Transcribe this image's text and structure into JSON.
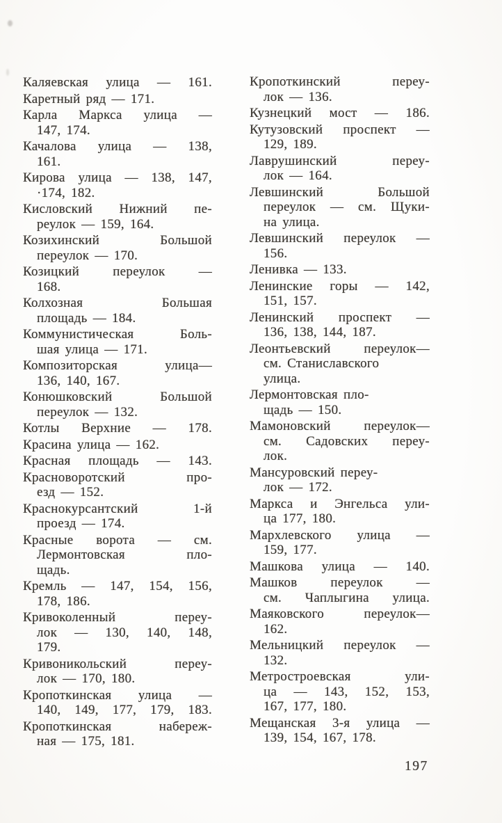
{
  "page": {
    "number": "197"
  },
  "columns": {
    "left": [
      {
        "lines": [
          {
            "text": "Каляевская улица — 161.",
            "indent": false,
            "justify": true
          }
        ]
      },
      {
        "lines": [
          {
            "text": "Каретный ряд — 171.",
            "indent": false,
            "justify": false
          }
        ]
      },
      {
        "lines": [
          {
            "text": "Карла Маркса улица —",
            "indent": false,
            "justify": true
          },
          {
            "text": "147, 174.",
            "indent": true,
            "justify": false
          }
        ]
      },
      {
        "lines": [
          {
            "text": "Качалова улица — 138,",
            "indent": false,
            "justify": true
          },
          {
            "text": "161.",
            "indent": true,
            "justify": false
          }
        ]
      },
      {
        "lines": [
          {
            "text": "Кирова улица — 138, 147,",
            "indent": false,
            "justify": true
          },
          {
            "text": "·174, 182.",
            "indent": true,
            "justify": false
          }
        ]
      },
      {
        "lines": [
          {
            "text": "Кисловский Нижний пе-",
            "indent": false,
            "justify": true
          },
          {
            "text": "реулок — 159, 164.",
            "indent": true,
            "justify": false
          }
        ]
      },
      {
        "lines": [
          {
            "text": "Козихинский Большой",
            "indent": false,
            "justify": true
          },
          {
            "text": "переулок — 170.",
            "indent": true,
            "justify": false
          }
        ]
      },
      {
        "lines": [
          {
            "text": "Козицкий переулок —",
            "indent": false,
            "justify": true
          },
          {
            "text": "168.",
            "indent": true,
            "justify": false
          }
        ]
      },
      {
        "lines": [
          {
            "text": "Колхозная Большая",
            "indent": false,
            "justify": true
          },
          {
            "text": "площадь — 184.",
            "indent": true,
            "justify": false
          }
        ]
      },
      {
        "lines": [
          {
            "text": "Коммунистическая Боль-",
            "indent": false,
            "justify": true
          },
          {
            "text": "шая улица — 171.",
            "indent": true,
            "justify": false
          }
        ]
      },
      {
        "lines": [
          {
            "text": "Композиторская улица—",
            "indent": false,
            "justify": true
          },
          {
            "text": "136, 140, 167.",
            "indent": true,
            "justify": false
          }
        ]
      },
      {
        "lines": [
          {
            "text": "Конюшковский Большой",
            "indent": false,
            "justify": true
          },
          {
            "text": "переулок — 132.",
            "indent": true,
            "justify": false
          }
        ]
      },
      {
        "lines": [
          {
            "text": "Котлы Верхние — 178.",
            "indent": false,
            "justify": true
          }
        ]
      },
      {
        "lines": [
          {
            "text": "Красина улица — 162.",
            "indent": false,
            "justify": false
          }
        ]
      },
      {
        "lines": [
          {
            "text": "Красная площадь — 143.",
            "indent": false,
            "justify": true
          }
        ]
      },
      {
        "lines": [
          {
            "text": "Красноворотский про-",
            "indent": false,
            "justify": true
          },
          {
            "text": "езд — 152.",
            "indent": true,
            "justify": false
          }
        ]
      },
      {
        "lines": [
          {
            "text": "Краснокурсантский 1-й",
            "indent": false,
            "justify": true
          },
          {
            "text": "проезд — 174.",
            "indent": true,
            "justify": false
          }
        ]
      },
      {
        "lines": [
          {
            "text": "Красные ворота — см.",
            "indent": false,
            "justify": true
          },
          {
            "text": "Лермонтовская пло-",
            "indent": true,
            "justify": true
          },
          {
            "text": "щадь.",
            "indent": true,
            "justify": false
          }
        ]
      },
      {
        "lines": [
          {
            "text": "Кремль — 147, 154, 156,",
            "indent": false,
            "justify": true
          },
          {
            "text": "178, 186.",
            "indent": true,
            "justify": false
          }
        ]
      },
      {
        "lines": [
          {
            "text": "Кривоколенный переу-",
            "indent": false,
            "justify": true
          },
          {
            "text": "лок — 130, 140, 148,",
            "indent": true,
            "justify": true
          },
          {
            "text": "179.",
            "indent": true,
            "justify": false
          }
        ]
      },
      {
        "lines": [
          {
            "text": "Кривоникольский переу-",
            "indent": false,
            "justify": true
          },
          {
            "text": "лок — 170, 180.",
            "indent": true,
            "justify": false
          }
        ]
      },
      {
        "lines": [
          {
            "text": "Кропоткинская улица —",
            "indent": false,
            "justify": true
          },
          {
            "text": "140, 149, 177, 179, 183.",
            "indent": true,
            "justify": true
          }
        ]
      },
      {
        "lines": [
          {
            "text": "Кропоткинская набереж-",
            "indent": false,
            "justify": true
          },
          {
            "text": "ная — 175, 181.",
            "indent": true,
            "justify": false
          }
        ]
      }
    ],
    "right": [
      {
        "lines": [
          {
            "text": "Кропоткинский переу-",
            "indent": false,
            "justify": true
          },
          {
            "text": "лок — 136.",
            "indent": true,
            "justify": false
          }
        ]
      },
      {
        "lines": [
          {
            "text": "Кузнецкий мост — 186.",
            "indent": false,
            "justify": true
          }
        ]
      },
      {
        "lines": [
          {
            "text": "Кутузовский проспект —",
            "indent": false,
            "justify": true
          },
          {
            "text": "129, 189.",
            "indent": true,
            "justify": false
          }
        ]
      },
      {
        "lines": [
          {
            "text": "Лаврушинский переу-",
            "indent": false,
            "justify": true
          },
          {
            "text": "лок — 164.",
            "indent": true,
            "justify": false
          }
        ]
      },
      {
        "lines": [
          {
            "text": "Левшинский Большой",
            "indent": false,
            "justify": true
          },
          {
            "text": "переулок — см. Щуки-",
            "indent": true,
            "justify": true
          },
          {
            "text": "на улица.",
            "indent": true,
            "justify": false
          }
        ]
      },
      {
        "lines": [
          {
            "text": "Левшинский переулок —",
            "indent": false,
            "justify": true
          },
          {
            "text": "156.",
            "indent": true,
            "justify": false
          }
        ]
      },
      {
        "lines": [
          {
            "text": "Ленивка — 133.",
            "indent": false,
            "justify": false
          }
        ]
      },
      {
        "lines": [
          {
            "text": "Ленинские горы — 142,",
            "indent": false,
            "justify": true
          },
          {
            "text": "151, 157.",
            "indent": true,
            "justify": false
          }
        ]
      },
      {
        "lines": [
          {
            "text": "Ленинский проспект —",
            "indent": false,
            "justify": true
          },
          {
            "text": "136, 138, 144, 187.",
            "indent": true,
            "justify": false
          }
        ]
      },
      {
        "lines": [
          {
            "text": "Леонтьевский переулок—",
            "indent": false,
            "justify": true
          },
          {
            "text": "см. Станиславского",
            "indent": true,
            "justify": false
          },
          {
            "text": "улица.",
            "indent": true,
            "justify": false
          }
        ]
      },
      {
        "lines": [
          {
            "text": "Лермонтовская пло-",
            "indent": false,
            "justify": false
          },
          {
            "text": "щадь — 150.",
            "indent": true,
            "justify": false
          }
        ]
      },
      {
        "lines": [
          {
            "text": "Мамоновский переулок—",
            "indent": false,
            "justify": true
          },
          {
            "text": "см. Садовских переу-",
            "indent": true,
            "justify": true
          },
          {
            "text": "лок.",
            "indent": true,
            "justify": false
          }
        ]
      },
      {
        "lines": [
          {
            "text": "Мансуровский переу-",
            "indent": false,
            "justify": false
          },
          {
            "text": "лок — 172.",
            "indent": true,
            "justify": false
          }
        ]
      },
      {
        "lines": [
          {
            "text": "Маркса и Энгельса ули-",
            "indent": false,
            "justify": true
          },
          {
            "text": "ца 177, 180.",
            "indent": true,
            "justify": false
          }
        ]
      },
      {
        "lines": [
          {
            "text": "Мархлевского улица —",
            "indent": false,
            "justify": true
          },
          {
            "text": "159, 177.",
            "indent": true,
            "justify": false
          }
        ]
      },
      {
        "lines": [
          {
            "text": "Машкова улица — 140.",
            "indent": false,
            "justify": true
          }
        ]
      },
      {
        "lines": [
          {
            "text": "Машков переулок —",
            "indent": false,
            "justify": true
          },
          {
            "text": "см. Чаплыгина улица.",
            "indent": true,
            "justify": true
          }
        ]
      },
      {
        "lines": [
          {
            "text": "Маяковского переулок—",
            "indent": false,
            "justify": true
          },
          {
            "text": "162.",
            "indent": true,
            "justify": false
          }
        ]
      },
      {
        "lines": [
          {
            "text": "Мельницкий переулок —",
            "indent": false,
            "justify": true
          },
          {
            "text": "132.",
            "indent": true,
            "justify": false
          }
        ]
      },
      {
        "lines": [
          {
            "text": "Метростроевская ули-",
            "indent": false,
            "justify": true
          },
          {
            "text": "ца — 143, 152, 153,",
            "indent": true,
            "justify": true
          },
          {
            "text": "167, 177, 180.",
            "indent": true,
            "justify": false
          }
        ]
      },
      {
        "lines": [
          {
            "text": "Мещанская 3-я улица —",
            "indent": false,
            "justify": true
          },
          {
            "text": "139, 154, 167, 178.",
            "indent": true,
            "justify": false
          }
        ]
      }
    ]
  }
}
